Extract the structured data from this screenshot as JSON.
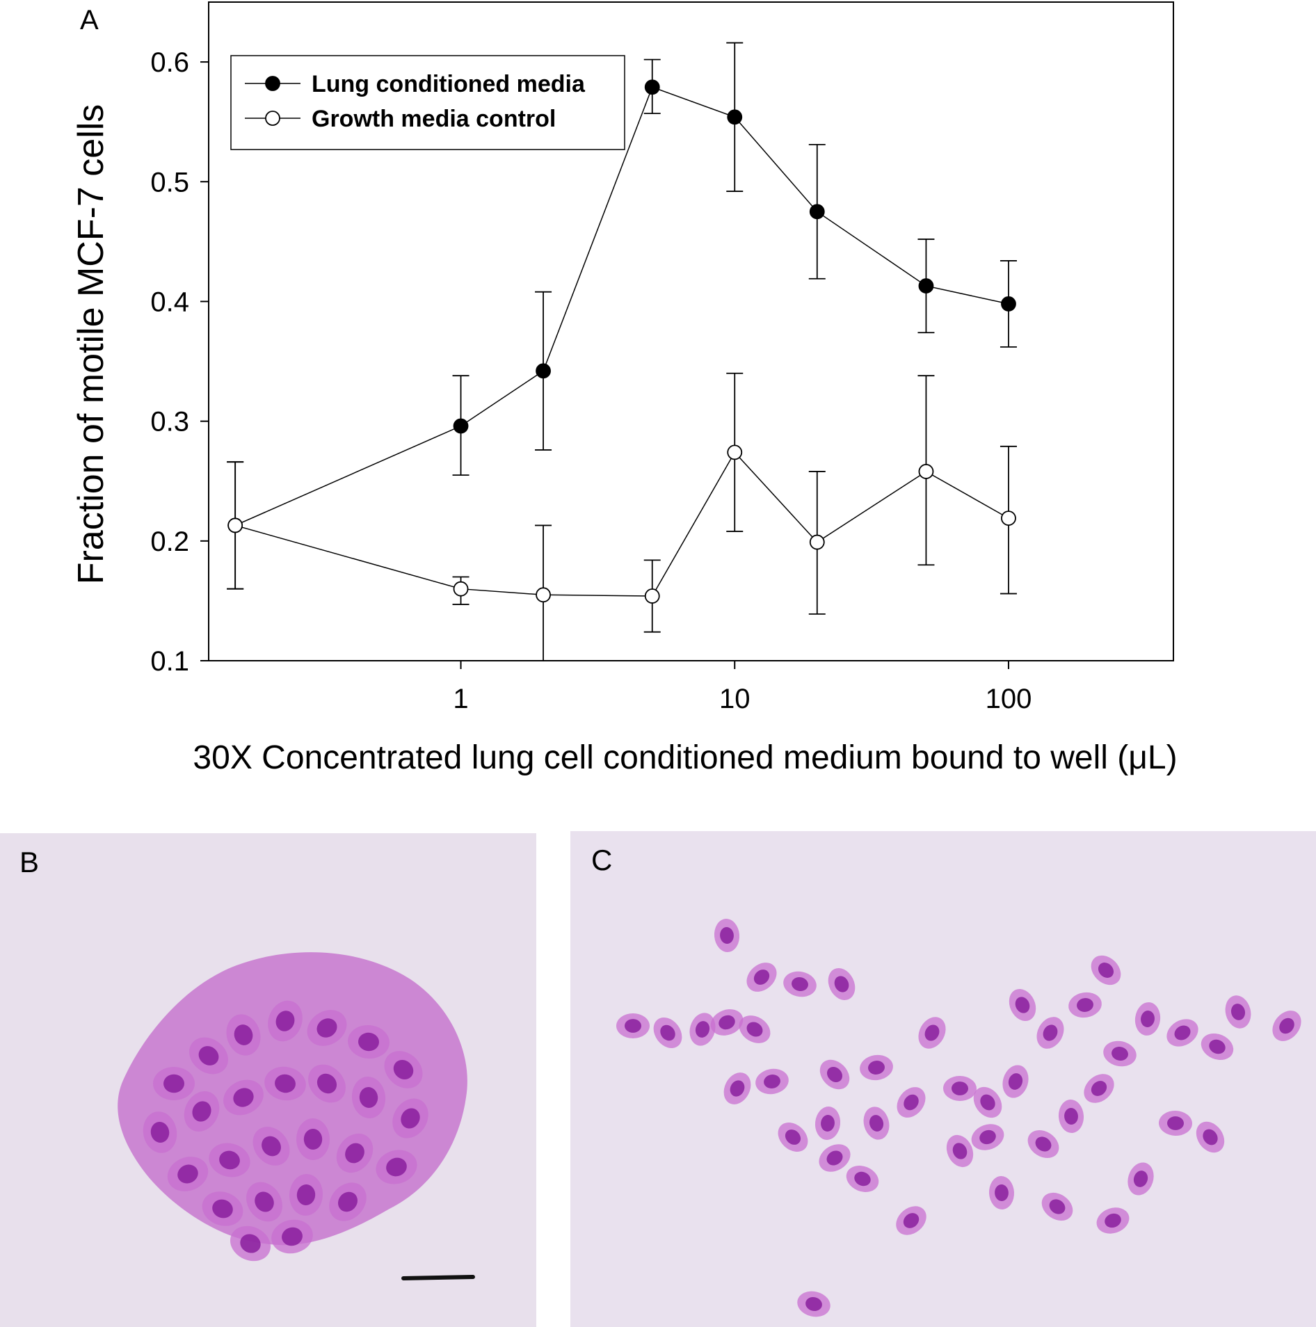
{
  "panel_labels": {
    "a": "A",
    "b": "B",
    "c": "C"
  },
  "chart_data": {
    "type": "line",
    "x_scale": "log",
    "xlabel": "30X Concentrated lung cell conditioned medium bound to well (μL)",
    "ylabel": "Fraction of motile MCF-7 cells",
    "xlim": [
      0.12,
      400
    ],
    "ylim": [
      0.1,
      0.65
    ],
    "x_ticks": [
      1,
      10,
      100
    ],
    "x_tick_labels": [
      "1",
      "10",
      "100"
    ],
    "y_ticks": [
      0.1,
      0.2,
      0.3,
      0.4,
      0.5,
      0.6
    ],
    "y_tick_labels": [
      "0.1",
      "0.2",
      "0.3",
      "0.4",
      "0.5",
      "0.6"
    ],
    "grid": false,
    "legend_position": "top-left",
    "series": [
      {
        "name": "Lung conditioned media",
        "marker": "filled-circle",
        "color": "#000000",
        "points": [
          {
            "x": 0.15,
            "y": 0.213,
            "err_low": 0.16,
            "err_high": 0.266
          },
          {
            "x": 1,
            "y": 0.296,
            "err_low": 0.255,
            "err_high": 0.338
          },
          {
            "x": 2,
            "y": 0.342,
            "err_low": 0.276,
            "err_high": 0.408
          },
          {
            "x": 5,
            "y": 0.579,
            "err_low": 0.557,
            "err_high": 0.602
          },
          {
            "x": 10,
            "y": 0.554,
            "err_low": 0.492,
            "err_high": 0.616
          },
          {
            "x": 20,
            "y": 0.475,
            "err_low": 0.419,
            "err_high": 0.531
          },
          {
            "x": 50,
            "y": 0.413,
            "err_low": 0.374,
            "err_high": 0.452
          },
          {
            "x": 100,
            "y": 0.398,
            "err_low": 0.362,
            "err_high": 0.434
          }
        ]
      },
      {
        "name": "Growth media control",
        "marker": "open-circle",
        "color": "#000000",
        "points": [
          {
            "x": 0.15,
            "y": 0.213,
            "err_low": 0.16,
            "err_high": 0.266
          },
          {
            "x": 1,
            "y": 0.16,
            "err_low": 0.147,
            "err_high": 0.17
          },
          {
            "x": 2,
            "y": 0.155,
            "err_low": 0.1,
            "err_high": 0.213
          },
          {
            "x": 5,
            "y": 0.154,
            "err_low": 0.124,
            "err_high": 0.184
          },
          {
            "x": 10,
            "y": 0.274,
            "err_low": 0.208,
            "err_high": 0.34
          },
          {
            "x": 20,
            "y": 0.199,
            "err_low": 0.139,
            "err_high": 0.258
          },
          {
            "x": 50,
            "y": 0.258,
            "err_low": 0.18,
            "err_high": 0.338
          },
          {
            "x": 100,
            "y": 0.219,
            "err_low": 0.156,
            "err_high": 0.279
          }
        ]
      }
    ]
  },
  "colors": {
    "photo_background_b": "#e8e0ec",
    "photo_background_c": "#e9e1ee",
    "cell_cytoplasm": "#c86fd0",
    "cell_nucleus": "#8a1f9e"
  }
}
